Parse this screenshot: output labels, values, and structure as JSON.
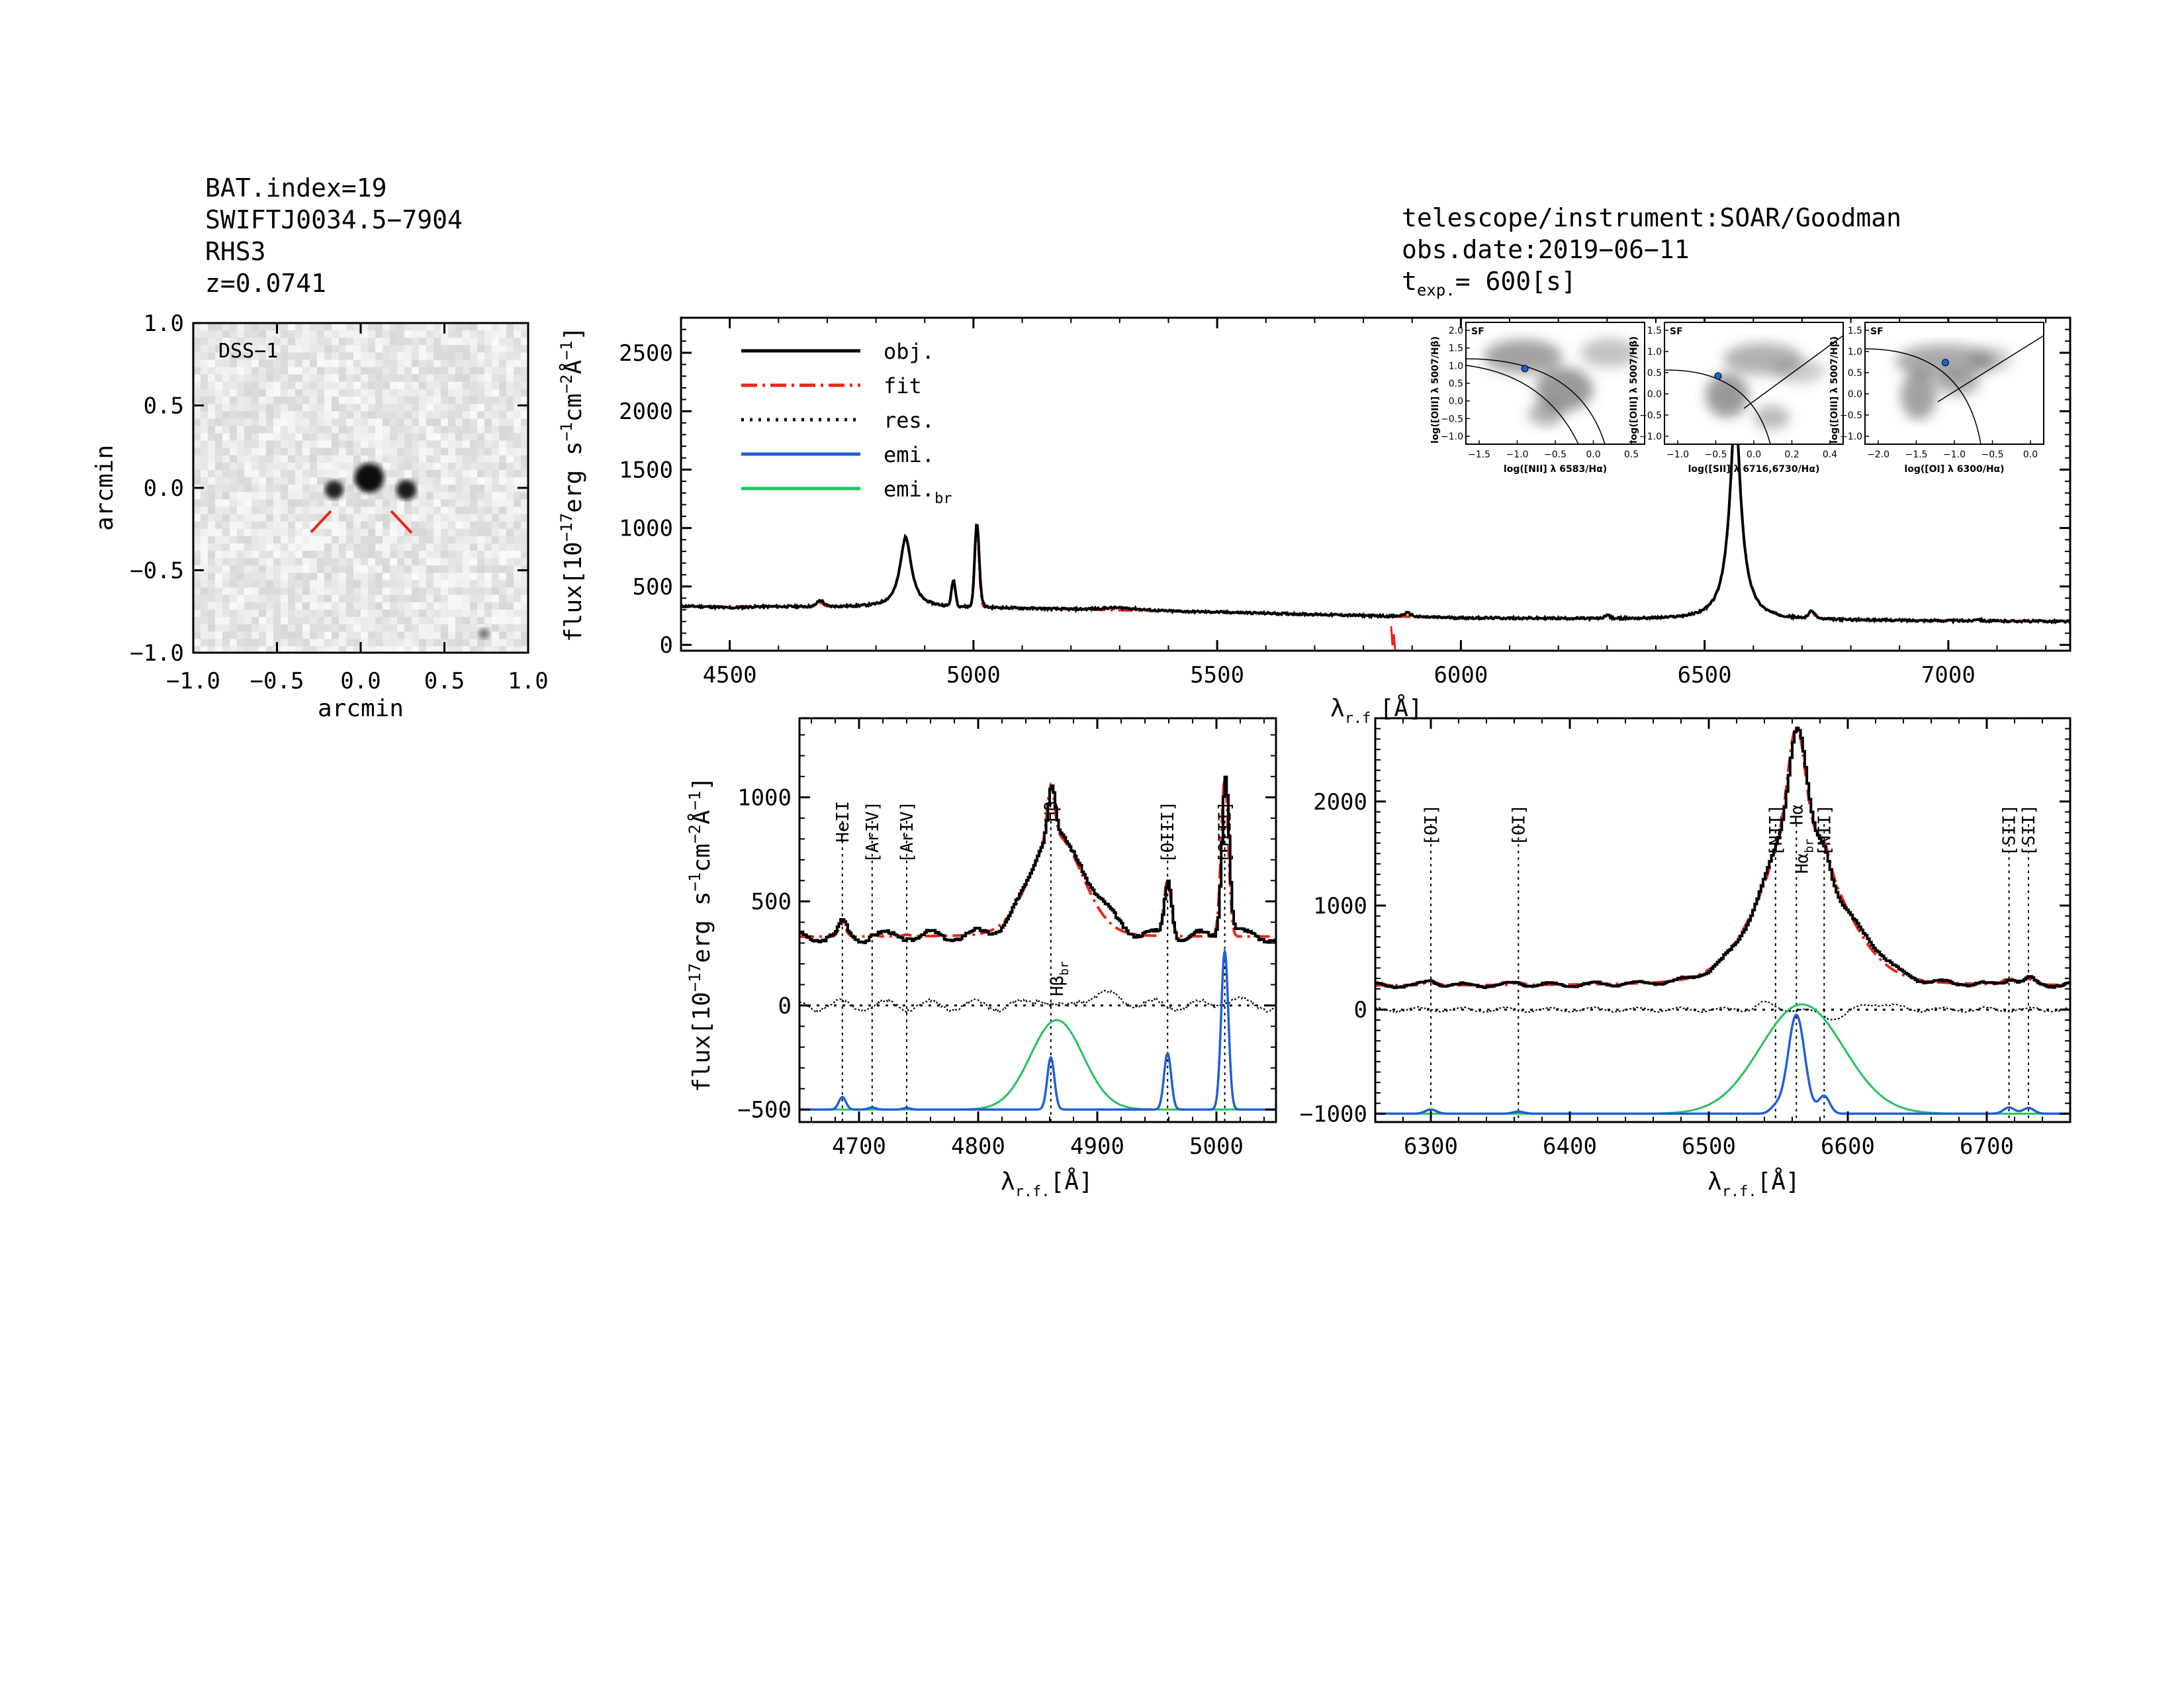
{
  "header_left": {
    "line1": "BAT.index=19",
    "line2": "SWIFTJ0034.5−7904",
    "line3": "RHS3",
    "line4": "z=0.0741"
  },
  "header_right": {
    "line1": "telescope/instrument:SOAR/Goodman",
    "line2": "obs.date:2019−06−11",
    "texp_label": "t",
    "texp_sub": "exp.",
    "texp_value": "=  600[s]"
  },
  "colors": {
    "obj": "#000000",
    "fit": "#e8261a",
    "emi": "#1f5fd6",
    "emi_br": "#22c35a",
    "res": "#000000",
    "ariv": "#e8261a"
  },
  "image_panel": {
    "tag": "DSS−1",
    "xlabel": "arcmin",
    "ylabel": "arcmin",
    "ticks": [
      "−1.0",
      "−0.5",
      "0.0",
      "0.5",
      "1.0"
    ]
  },
  "legend": [
    {
      "label": "obj.",
      "style": "solid",
      "color": "#000000"
    },
    {
      "label": "fit",
      "style": "dashdot",
      "color": "#e8261a"
    },
    {
      "label": "res.",
      "style": "dotted",
      "color": "#000000"
    },
    {
      "label": "emi.",
      "style": "solid",
      "color": "#1f5fd6"
    },
    {
      "label": "emi.",
      "sub": "br",
      "style": "solid",
      "color": "#22c35a"
    }
  ],
  "axis_text": {
    "flux_ylabel": "flux[10",
    "flux_exp1": "−17",
    "flux_mid": "erg s",
    "flux_exp2": "−1",
    "flux_mid2": "cm",
    "flux_exp3": "−2",
    "flux_end": "Å",
    "flux_exp4": "−1",
    "flux_close": "]",
    "lam_label": "λ",
    "lam_sub": "r.f.",
    "lam_unit": "[Å]"
  },
  "bpt": [
    {
      "tag": "SF",
      "xlabel": "log([NII] λ 6583/Hα)",
      "ylabel": "log([OIII] λ 5007/Hβ)",
      "xticks": [
        "−1.5",
        "−1.0",
        "−0.5",
        "0.0",
        "0.5"
      ],
      "yticks": [
        "2.0",
        "1.5",
        "1.0",
        "0.5",
        "0.0",
        "−0.5",
        "−1.0"
      ]
    },
    {
      "tag": "SF",
      "xlabel": "log([SII] λ 6716,6730/Hα)",
      "ylabel": "log([OIII] λ 5007/Hβ)",
      "xticks": [
        "−1.0",
        "−0.5",
        "0.0",
        "0.2",
        "0.4"
      ],
      "yticks": [
        "1.5",
        "1.0",
        "0.5",
        "0.0",
        "−0.5",
        "−1.0"
      ]
    },
    {
      "tag": "SF",
      "xlabel": "log([OI] λ 6300/Hα)",
      "ylabel": "log([OIII] λ 5007/Hβ)",
      "xticks": [
        "−2.0",
        "−1.5",
        "−1.0",
        "−0.5",
        "0.0"
      ],
      "yticks": [
        "1.5",
        "1.0",
        "0.5",
        "0.0",
        "−0.5",
        "−1.0"
      ]
    }
  ],
  "line_labels_hb": [
    {
      "text": "HeII",
      "x": 4686,
      "color": "#000000"
    },
    {
      "text": "[ArIV]",
      "x": 4711,
      "color": "#e8261a"
    },
    {
      "text": "[ArIV]",
      "x": 4740,
      "color": "#e8261a"
    },
    {
      "text": "Hβ",
      "x": 4861,
      "color": "#000000"
    },
    {
      "text": "[OIII]",
      "x": 4959,
      "color": "#000000"
    },
    {
      "text": "[OIII]",
      "x": 5007,
      "color": "#000000"
    }
  ],
  "hb_br_label": {
    "text": "Hβ",
    "sub": "br"
  },
  "line_labels_ha": [
    {
      "text": "[OI]",
      "x": 6300
    },
    {
      "text": "[OI]",
      "x": 6363
    },
    {
      "text": "[NII]",
      "x": 6548
    },
    {
      "text": "Hα",
      "x": 6563
    },
    {
      "text": "[NII]",
      "x": 6583
    },
    {
      "text": "[SII]",
      "x": 6716
    },
    {
      "text": "[SII]",
      "x": 6730
    }
  ],
  "ha_br_label": {
    "text": "Hα",
    "sub": "br"
  },
  "chart_data": [
    {
      "type": "line",
      "panel": "full spectrum",
      "xlabel": "λr.f.[Å]",
      "ylabel": "flux[10^-17 erg s^-1 cm^-2 Å^-1]",
      "xlim": [
        4400,
        7250
      ],
      "ylim": [
        -50,
        2800
      ],
      "xticks": [
        4500,
        5000,
        5500,
        6000,
        6500,
        7000
      ],
      "yticks": [
        0,
        500,
        1000,
        1500,
        2000,
        2500
      ],
      "continuum": [
        [
          4400,
          330
        ],
        [
          5000,
          320
        ],
        [
          5500,
          280
        ],
        [
          6000,
          230
        ],
        [
          6500,
          215
        ],
        [
          7000,
          205
        ],
        [
          7250,
          200
        ]
      ],
      "lines": [
        {
          "center": 4861,
          "amp": 600,
          "sigma": 18
        },
        {
          "center": 4959,
          "amp": 220,
          "sigma": 4
        },
        {
          "center": 5007,
          "amp": 720,
          "sigma": 5
        },
        {
          "center": 6563,
          "amp": 1880,
          "sigma": 22
        }
      ],
      "series": [
        {
          "name": "obj.",
          "color": "#000000"
        },
        {
          "name": "fit",
          "color": "#e8261a"
        }
      ]
    },
    {
      "type": "line",
      "panel": "Hβ region",
      "xlabel": "λr.f.[Å]",
      "ylabel": "flux[10^-17 erg s^-1 cm^-2 Å^-1]",
      "xlim": [
        4650,
        5050
      ],
      "ylim": [
        -560,
        1380
      ],
      "xticks": [
        4700,
        4800,
        4900,
        5000
      ],
      "yticks": [
        -500,
        0,
        500,
        1000
      ],
      "continuum": 330,
      "emi_baseline": -500,
      "narrow": [
        {
          "center": 4686,
          "amp": 60,
          "sigma": 3
        },
        {
          "center": 4711,
          "amp": 10,
          "sigma": 3
        },
        {
          "center": 4740,
          "amp": 8,
          "sigma": 3
        },
        {
          "center": 4861,
          "amp": 250,
          "sigma": 3
        },
        {
          "center": 4959,
          "amp": 270,
          "sigma": 3
        },
        {
          "center": 5007,
          "amp": 760,
          "sigma": 3
        }
      ],
      "broad": {
        "center": 4866,
        "amp": 430,
        "sigma": 22
      },
      "series": [
        {
          "name": "obj.",
          "color": "#000000"
        },
        {
          "name": "fit",
          "color": "#e8261a"
        },
        {
          "name": "res.",
          "color": "#000000"
        },
        {
          "name": "emi.",
          "color": "#1f5fd6"
        },
        {
          "name": "emi.br",
          "color": "#22c35a"
        }
      ]
    },
    {
      "type": "line",
      "panel": "Hα region",
      "xlabel": "λr.f.[Å]",
      "ylabel": "flux[10^-17 erg s^-1 cm^-2 Å^-1]",
      "xlim": [
        6260,
        6760
      ],
      "ylim": [
        -1080,
        2800
      ],
      "xticks": [
        6300,
        6400,
        6500,
        6600,
        6700
      ],
      "yticks": [
        -1000,
        0,
        1000,
        2000
      ],
      "continuum": 230,
      "emi_baseline": -1000,
      "narrow": [
        {
          "center": 6300,
          "amp": 40,
          "sigma": 4
        },
        {
          "center": 6363,
          "amp": 20,
          "sigma": 4
        },
        {
          "center": 6548,
          "amp": 60,
          "sigma": 4
        },
        {
          "center": 6563,
          "amp": 950,
          "sigma": 6
        },
        {
          "center": 6583,
          "amp": 170,
          "sigma": 4
        },
        {
          "center": 6716,
          "amp": 60,
          "sigma": 4
        },
        {
          "center": 6730,
          "amp": 55,
          "sigma": 4
        }
      ],
      "broad": {
        "center": 6567,
        "amp": 1050,
        "sigma": 30
      },
      "series": [
        {
          "name": "obj.",
          "color": "#000000"
        },
        {
          "name": "fit",
          "color": "#e8261a"
        },
        {
          "name": "res.",
          "color": "#000000"
        },
        {
          "name": "emi.",
          "color": "#1f5fd6"
        },
        {
          "name": "emi.br",
          "color": "#22c35a"
        }
      ]
    }
  ]
}
